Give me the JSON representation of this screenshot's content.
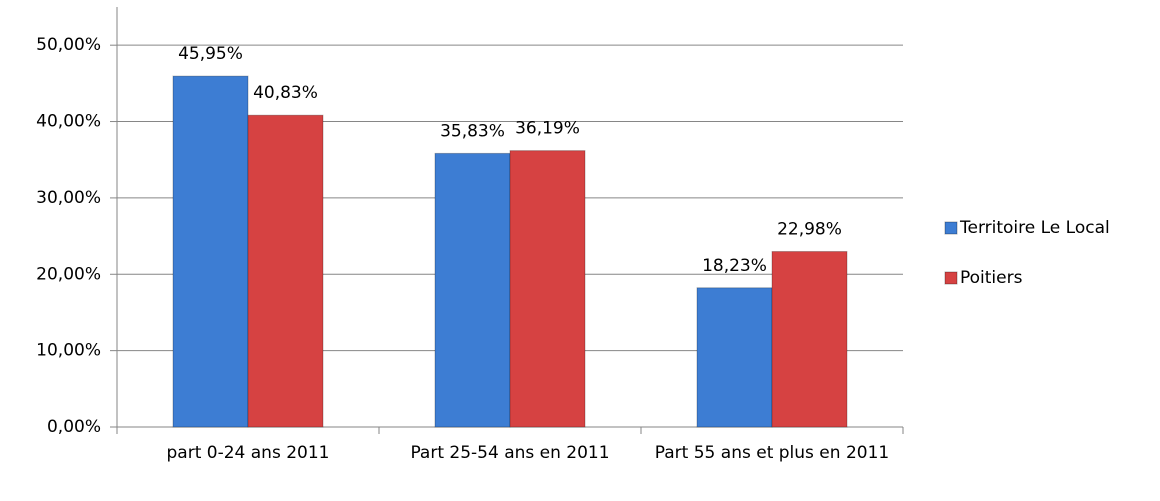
{
  "chart_data": {
    "type": "bar",
    "categories": [
      "part 0-24 ans 2011",
      "Part 25-54 ans en 2011",
      "Part 55 ans et plus en 2011"
    ],
    "series": [
      {
        "name": "Territoire Le Local",
        "color": "#3d7dd3",
        "values": [
          45.95,
          35.83,
          18.23
        ],
        "value_labels": [
          "45,95%",
          "35,83%",
          "18,23%"
        ]
      },
      {
        "name": "Poitiers",
        "color": "#d64242",
        "values": [
          40.83,
          36.19,
          22.98
        ],
        "value_labels": [
          "40,83%",
          "36,19%",
          "22,98%"
        ]
      }
    ],
    "ylim": [
      0,
      55
    ],
    "yticks": [
      {
        "value": 0,
        "label": "0,00%"
      },
      {
        "value": 10,
        "label": "10,00%"
      },
      {
        "value": 20,
        "label": "20,00%"
      },
      {
        "value": 30,
        "label": "30,00%"
      },
      {
        "value": 40,
        "label": "40,00%"
      },
      {
        "value": 50,
        "label": "50,00%"
      }
    ],
    "grid": true,
    "legend": "right"
  }
}
